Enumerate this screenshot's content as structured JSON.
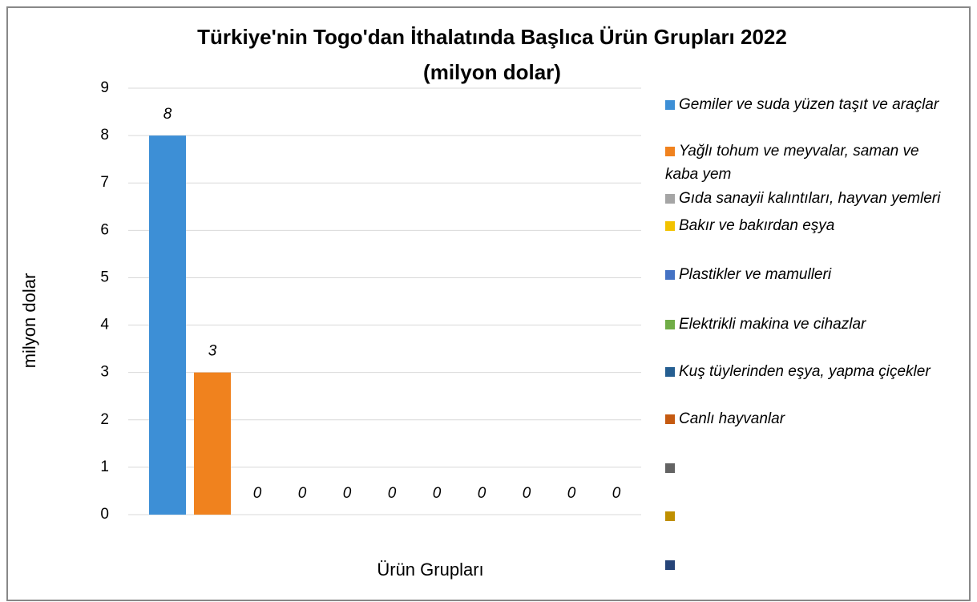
{
  "chart_data": {
    "type": "bar",
    "title": [
      "Türkiye'nin Togo'dan İthalatında Başlıca Ürün Grupları 2022",
      "(milyon dolar)"
    ],
    "y_label": "milyon dolar",
    "x_label": "Ürün Grupları",
    "ylim": [
      0,
      9
    ],
    "yticks": [
      0,
      1,
      2,
      3,
      4,
      5,
      6,
      7,
      8,
      9
    ],
    "grid": true,
    "legend": "right",
    "series": [
      {
        "name": "Gemiler ve suda yüzen taşıt ve araçlar",
        "color": "#3d8fd6",
        "values": [
          8
        ]
      },
      {
        "name": "Yağlı tohum ve meyvalar, saman ve kaba yem",
        "color": "#f0821e",
        "values": [
          3
        ]
      },
      {
        "name": "Gıda sanayii kalıntıları, hayvan yemleri",
        "color": "#a5a5a5",
        "values": [
          0
        ]
      },
      {
        "name": "Bakır ve bakırdan eşya",
        "color": "#f2c200",
        "values": [
          0
        ]
      },
      {
        "name": "Plastikler ve mamulleri",
        "color": "#4472c4",
        "values": [
          0
        ]
      },
      {
        "name": "Elektrikli makina ve cihazlar",
        "color": "#70ad47",
        "values": [
          0
        ]
      },
      {
        "name": "Kuş tüylerinden eşya, yapma çiçekler",
        "color": "#255e91",
        "values": [
          0
        ]
      },
      {
        "name": "Canlı hayvanlar",
        "color": "#c55a11",
        "values": [
          0
        ]
      },
      {
        "color": "#636363",
        "values": [
          0
        ]
      },
      {
        "color": "#bf8f00",
        "values": [
          0
        ]
      },
      {
        "color": "#264478",
        "values": [
          0
        ]
      }
    ]
  }
}
